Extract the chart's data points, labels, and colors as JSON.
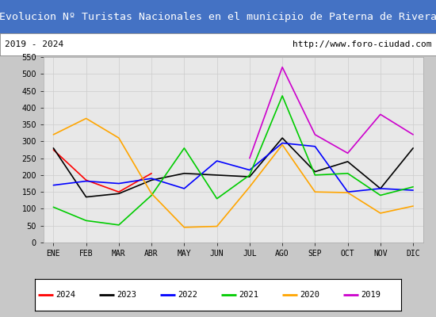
{
  "title": "Evolucion Nº Turistas Nacionales en el municipio de Paterna de Rivera",
  "subtitle_left": "2019 - 2024",
  "subtitle_right": "http://www.foro-ciudad.com",
  "title_bg_color": "#4472c4",
  "title_text_color": "#ffffff",
  "months": [
    "ENE",
    "FEB",
    "MAR",
    "ABR",
    "MAY",
    "JUN",
    "JUL",
    "AGO",
    "SEP",
    "OCT",
    "NOV",
    "DIC"
  ],
  "ylim": [
    0,
    550
  ],
  "yticks": [
    0,
    50,
    100,
    150,
    200,
    250,
    300,
    350,
    400,
    450,
    500,
    550
  ],
  "series": {
    "2024": {
      "color": "#ff0000",
      "values": [
        275,
        185,
        150,
        205,
        null,
        null,
        null,
        null,
        null,
        null,
        null,
        null
      ]
    },
    "2023": {
      "color": "#000000",
      "values": [
        280,
        135,
        145,
        185,
        205,
        200,
        195,
        310,
        210,
        240,
        160,
        280
      ]
    },
    "2022": {
      "color": "#0000ff",
      "values": [
        170,
        182,
        175,
        190,
        160,
        242,
        215,
        295,
        285,
        150,
        160,
        155
      ]
    },
    "2021": {
      "color": "#00cc00",
      "values": [
        105,
        65,
        52,
        140,
        280,
        130,
        200,
        435,
        200,
        205,
        140,
        165
      ]
    },
    "2020": {
      "color": "#ffa500",
      "values": [
        320,
        368,
        310,
        145,
        45,
        48,
        165,
        290,
        150,
        148,
        87,
        108
      ]
    },
    "2019": {
      "color": "#cc00cc",
      "values": [
        null,
        null,
        null,
        null,
        null,
        null,
        250,
        520,
        320,
        265,
        380,
        320
      ]
    }
  },
  "legend_order": [
    "2024",
    "2023",
    "2022",
    "2021",
    "2020",
    "2019"
  ],
  "grid_color": "#cccccc",
  "plot_bg_color": "#e8e8e8",
  "outer_bg_color": "#c8c8c8",
  "subtitle_bg_color": "#ffffff",
  "legend_bg_color": "#ffffff"
}
